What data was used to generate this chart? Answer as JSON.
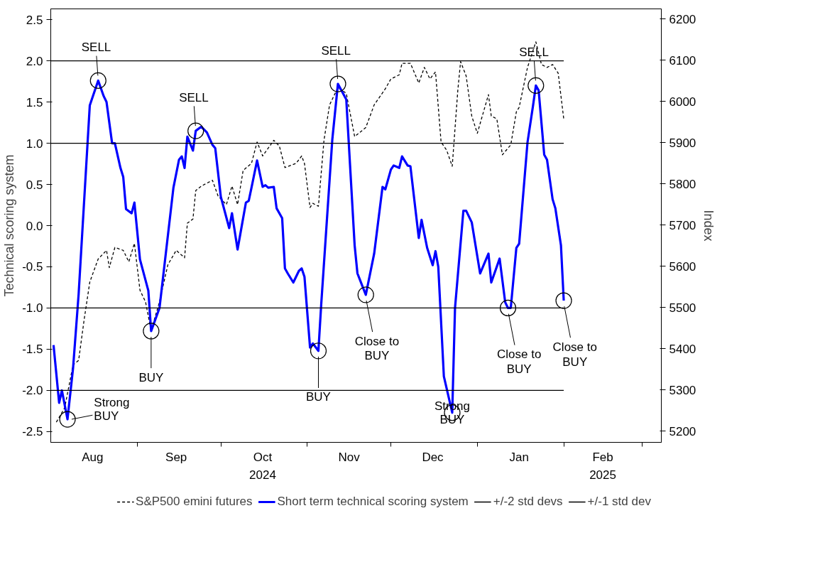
{
  "chart_data": {
    "type": "line",
    "ylabel": "Technical scoring system",
    "y2label": "Index",
    "xlim": [
      "2024-08-01",
      "2025-03-08"
    ],
    "xticks": [
      {
        "value": "2024-08-16",
        "label": "Aug"
      },
      {
        "value": "2024-09-01",
        "label": null
      },
      {
        "value": "2024-09-15",
        "label": "Sep"
      },
      {
        "value": "2024-10-01",
        "label": null
      },
      {
        "value": "2024-10-16",
        "label": "Oct\n2024"
      },
      {
        "value": "2024-11-01",
        "label": null
      },
      {
        "value": "2024-11-16",
        "label": "Nov"
      },
      {
        "value": "2024-12-01",
        "label": null
      },
      {
        "value": "2024-12-16",
        "label": "Dec"
      },
      {
        "value": "2025-01-01",
        "label": null
      },
      {
        "value": "2025-01-16",
        "label": "Jan"
      },
      {
        "value": "2025-02-01",
        "label": null
      },
      {
        "value": "2025-02-15",
        "label": "Feb\n2025"
      },
      {
        "value": "2025-03-01",
        "label": null
      }
    ],
    "ylim": [
      -2.63,
      2.63
    ],
    "yticks": [
      {
        "value": 2.5,
        "label": "2.5"
      },
      {
        "value": 2,
        "label": "2.0"
      },
      {
        "value": 1.5,
        "label": "1.5"
      },
      {
        "value": 1,
        "label": "1.0"
      },
      {
        "value": 0.5,
        "label": "0.5"
      },
      {
        "value": 0,
        "label": "0.0"
      },
      {
        "value": -0.5,
        "label": "-0.5"
      },
      {
        "value": -1,
        "label": "-1.0"
      },
      {
        "value": -1.5,
        "label": "-1.5"
      },
      {
        "value": -2,
        "label": "-2.0"
      },
      {
        "value": -2.5,
        "label": "-2.5"
      }
    ],
    "y2lim": [
      5173,
      6225
    ],
    "y2ticks": [
      5200,
      5300,
      5400,
      5500,
      5600,
      5700,
      5800,
      5900,
      6000,
      6100,
      6200
    ],
    "grid": false,
    "legend": "bottom",
    "series": [
      {
        "name": "S&P500 emini futures",
        "color": "#000000",
        "axis": "y2",
        "line_style": "dashed",
        "x": [
          "2024-08-03",
          "2024-08-06",
          "2024-08-09",
          "2024-08-11",
          "2024-08-13",
          "2024-08-15",
          "2024-08-18",
          "2024-08-21",
          "2024-08-22",
          "2024-08-24",
          "2024-08-27",
          "2024-08-29",
          "2024-08-31",
          "2024-09-02",
          "2024-09-04",
          "2024-09-06",
          "2024-09-09",
          "2024-09-12",
          "2024-09-15",
          "2024-09-18",
          "2024-09-19",
          "2024-09-21",
          "2024-09-22",
          "2024-09-24",
          "2024-09-28",
          "2024-09-30",
          "2024-10-03",
          "2024-10-05",
          "2024-10-07",
          "2024-10-09",
          "2024-10-12",
          "2024-10-14",
          "2024-10-16",
          "2024-10-20",
          "2024-10-22",
          "2024-10-24",
          "2024-10-28",
          "2024-10-30",
          "2024-10-31",
          "2024-11-02",
          "2024-11-03",
          "2024-11-05",
          "2024-11-07",
          "2024-11-09",
          "2024-11-12",
          "2024-11-15",
          "2024-11-18",
          "2024-11-22",
          "2024-11-25",
          "2024-11-29",
          "2024-12-01",
          "2024-12-04",
          "2024-12-05",
          "2024-12-08",
          "2024-12-11",
          "2024-12-13",
          "2024-12-15",
          "2024-12-17",
          "2024-12-19",
          "2024-12-21",
          "2024-12-23",
          "2024-12-25",
          "2024-12-26",
          "2024-12-28",
          "2024-12-30",
          "2025-01-01",
          "2025-01-05",
          "2025-01-06",
          "2025-01-08",
          "2025-01-10",
          "2025-01-13",
          "2025-01-15",
          "2025-01-16",
          "2025-01-19",
          "2025-01-22",
          "2025-01-24",
          "2025-01-26",
          "2025-01-28",
          "2025-01-30",
          "2025-02-01"
        ],
        "values": [
          5222,
          5257,
          5361,
          5372,
          5472,
          5562,
          5618,
          5639,
          5597,
          5646,
          5639,
          5611,
          5656,
          5542,
          5514,
          5444,
          5514,
          5604,
          5639,
          5621,
          5705,
          5715,
          5784,
          5795,
          5809,
          5771,
          5750,
          5795,
          5750,
          5833,
          5850,
          5902,
          5868,
          5906,
          5892,
          5840,
          5850,
          5868,
          5850,
          5743,
          5753,
          5746,
          5906,
          5992,
          6034,
          6020,
          5915,
          5937,
          5992,
          6031,
          6055,
          6065,
          6093,
          6093,
          6045,
          6083,
          6055,
          6072,
          5902,
          5882,
          5843,
          6027,
          6097,
          6062,
          5965,
          5923,
          6017,
          5965,
          5958,
          5871,
          5895,
          5975,
          5986,
          6083,
          6145,
          6090,
          6083,
          6090,
          6069,
          5958
        ]
      },
      {
        "name": "Short term technical scoring system",
        "color": "#0000ff",
        "line_style": "solid",
        "x": [
          "2024-08-02",
          "2024-08-04",
          "2024-08-05",
          "2024-08-07",
          "2024-08-09",
          "2024-08-11",
          "2024-08-15",
          "2024-08-18",
          "2024-08-20",
          "2024-08-21",
          "2024-08-23",
          "2024-08-24",
          "2024-08-26",
          "2024-08-27",
          "2024-08-28",
          "2024-08-30",
          "2024-08-31",
          "2024-09-02",
          "2024-09-05",
          "2024-09-06",
          "2024-09-09",
          "2024-09-14",
          "2024-09-16",
          "2024-09-17",
          "2024-09-18",
          "2024-09-19",
          "2024-09-21",
          "2024-09-22",
          "2024-09-24",
          "2024-09-26",
          "2024-09-28",
          "2024-09-29",
          "2024-10-01",
          "2024-10-04",
          "2024-10-05",
          "2024-10-07",
          "2024-10-10",
          "2024-10-11",
          "2024-10-12",
          "2024-10-14",
          "2024-10-16",
          "2024-10-17",
          "2024-10-18",
          "2024-10-20",
          "2024-10-21",
          "2024-10-23",
          "2024-10-24",
          "2024-10-25",
          "2024-10-27",
          "2024-10-29",
          "2024-10-30",
          "2024-10-31",
          "2024-11-02",
          "2024-11-03",
          "2024-11-05",
          "2024-11-06",
          "2024-11-10",
          "2024-11-12",
          "2024-11-15",
          "2024-11-18",
          "2024-11-19",
          "2024-11-22",
          "2024-11-25",
          "2024-11-28",
          "2024-11-29",
          "2024-12-01",
          "2024-12-02",
          "2024-12-04",
          "2024-12-05",
          "2024-12-07",
          "2024-12-08",
          "2024-12-11",
          "2024-12-12",
          "2024-12-14",
          "2024-12-16",
          "2024-12-17",
          "2024-12-18",
          "2024-12-20",
          "2024-12-23",
          "2024-12-24",
          "2024-12-27",
          "2024-12-28",
          "2024-12-30",
          "2025-01-02",
          "2025-01-05",
          "2025-01-06",
          "2025-01-09",
          "2025-01-11",
          "2025-01-12",
          "2025-01-13",
          "2025-01-15",
          "2025-01-16",
          "2025-01-19",
          "2025-01-21",
          "2025-01-22",
          "2025-01-23",
          "2025-01-25",
          "2025-01-26",
          "2025-01-28",
          "2025-01-29",
          "2025-01-31",
          "2025-02-01"
        ],
        "values": [
          -1.45,
          -2.15,
          -2.0,
          -2.35,
          -1.73,
          -0.83,
          1.46,
          1.76,
          1.57,
          1.5,
          1.0,
          1.0,
          0.7,
          0.59,
          0.2,
          0.15,
          0.28,
          -0.41,
          -0.79,
          -1.28,
          -1.0,
          0.46,
          0.8,
          0.84,
          0.7,
          1.08,
          0.91,
          1.15,
          1.2,
          1.13,
          0.98,
          0.94,
          0.35,
          -0.03,
          0.15,
          -0.29,
          0.28,
          0.3,
          0.46,
          0.79,
          0.47,
          0.49,
          0.46,
          0.47,
          0.21,
          0.09,
          -0.52,
          -0.58,
          -0.69,
          -0.55,
          -0.52,
          -0.62,
          -1.48,
          -1.43,
          -1.52,
          -0.96,
          1.05,
          1.72,
          1.53,
          -0.24,
          -0.58,
          -0.84,
          -0.34,
          0.47,
          0.44,
          0.68,
          0.73,
          0.7,
          0.84,
          0.73,
          0.72,
          -0.15,
          0.07,
          -0.27,
          -0.48,
          -0.31,
          -0.5,
          -1.83,
          -2.27,
          -1.0,
          0.18,
          0.18,
          0.04,
          -0.58,
          -0.34,
          -0.69,
          -0.4,
          -0.93,
          -1.0,
          -1.0,
          -0.27,
          -0.22,
          1.01,
          1.46,
          1.7,
          1.64,
          0.86,
          0.8,
          0.32,
          0.21,
          -0.24,
          -0.91
        ]
      }
    ],
    "ref_lines": [
      {
        "axis": "y",
        "value": 2,
        "label": "+/-2 std devs",
        "color": "#000000"
      },
      {
        "axis": "y",
        "value": -2,
        "color": "#000000"
      },
      {
        "axis": "y",
        "value": 1,
        "label": "+/-1 std dev",
        "color": "#000000"
      },
      {
        "axis": "y",
        "value": -1,
        "color": "#000000"
      }
    ],
    "annotations": [
      {
        "text": "SELL",
        "x": "2024-08-18",
        "y": 1.76
      },
      {
        "text": "SELL",
        "x": "2024-09-22",
        "y": 1.15
      },
      {
        "text": "SELL",
        "x": "2024-11-12",
        "y": 1.72
      },
      {
        "text": "SELL",
        "x": "2025-01-22",
        "y": 1.7
      },
      {
        "text": "Strong BUY",
        "x": "2024-08-07",
        "y": -2.35
      },
      {
        "text": "BUY",
        "x": "2024-09-06",
        "y": -1.28
      },
      {
        "text": "BUY",
        "x": "2024-11-05",
        "y": -1.52
      },
      {
        "text": "Close to BUY",
        "x": "2024-11-22",
        "y": -0.84
      },
      {
        "text": "Strong BUY",
        "x": "2024-12-23",
        "y": -2.27
      },
      {
        "text": "Close to BUY",
        "x": "2025-01-12",
        "y": -1.0
      },
      {
        "text": "Close to BUY",
        "x": "2025-02-01",
        "y": -0.91
      }
    ]
  }
}
